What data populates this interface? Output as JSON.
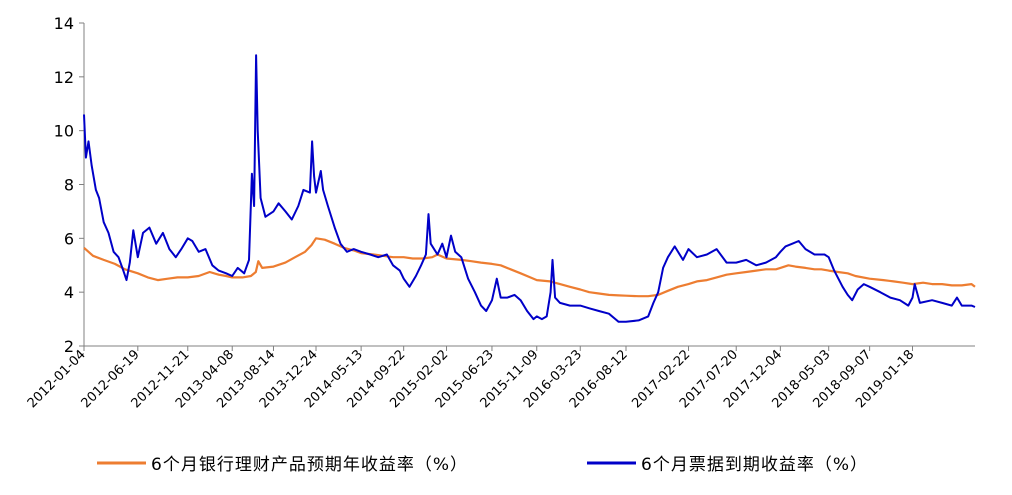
{
  "chart_data": {
    "type": "line",
    "title": "",
    "xlabel": "",
    "ylabel": "",
    "ylim": [
      2,
      14
    ],
    "yticks": [
      2,
      4,
      6,
      8,
      10,
      12,
      14
    ],
    "xlim": [
      "2012-01-04",
      "2019-07-31"
    ],
    "xtick_labels": [
      "2012-01-04",
      "2012-06-19",
      "2012-11-21",
      "2013-04-08",
      "2013-08-14",
      "2013-12-24",
      "2014-05-13",
      "2014-09-22",
      "2015-02-02",
      "2015-06-23",
      "2015-11-09",
      "2016-03-23",
      "2016-08-12",
      "2017-02-22",
      "2017-07-20",
      "2017-12-04",
      "2018-05-03",
      "2018-09-07",
      "2019-01-18"
    ],
    "grid": false,
    "legend_position": "bottom",
    "series": [
      {
        "name": "6个月银行理财产品预期年收益率（%）",
        "color": "#ED7D31",
        "points": [
          [
            "2012-01-04",
            5.65
          ],
          [
            "2012-02-01",
            5.35
          ],
          [
            "2012-03-05",
            5.2
          ],
          [
            "2012-04-09",
            5.05
          ],
          [
            "2012-05-10",
            4.85
          ],
          [
            "2012-06-19",
            4.7
          ],
          [
            "2012-07-20",
            4.55
          ],
          [
            "2012-08-20",
            4.45
          ],
          [
            "2012-09-20",
            4.5
          ],
          [
            "2012-10-20",
            4.55
          ],
          [
            "2012-11-21",
            4.55
          ],
          [
            "2012-12-25",
            4.6
          ],
          [
            "2013-01-28",
            4.75
          ],
          [
            "2013-02-25",
            4.65
          ],
          [
            "2013-03-20",
            4.6
          ],
          [
            "2013-04-08",
            4.55
          ],
          [
            "2013-05-10",
            4.55
          ],
          [
            "2013-06-05",
            4.6
          ],
          [
            "2013-06-20",
            4.75
          ],
          [
            "2013-06-28",
            5.15
          ],
          [
            "2013-07-10",
            4.9
          ],
          [
            "2013-08-14",
            4.95
          ],
          [
            "2013-09-20",
            5.1
          ],
          [
            "2013-10-20",
            5.3
          ],
          [
            "2013-11-20",
            5.5
          ],
          [
            "2013-12-10",
            5.75
          ],
          [
            "2013-12-24",
            6.0
          ],
          [
            "2014-01-20",
            5.95
          ],
          [
            "2014-02-20",
            5.8
          ],
          [
            "2014-03-20",
            5.65
          ],
          [
            "2014-04-20",
            5.55
          ],
          [
            "2014-05-13",
            5.45
          ],
          [
            "2014-06-20",
            5.4
          ],
          [
            "2014-07-20",
            5.35
          ],
          [
            "2014-08-20",
            5.3
          ],
          [
            "2014-09-22",
            5.3
          ],
          [
            "2014-10-20",
            5.25
          ],
          [
            "2014-11-20",
            5.25
          ],
          [
            "2014-12-20",
            5.3
          ],
          [
            "2015-01-05",
            5.4
          ],
          [
            "2015-02-02",
            5.25
          ],
          [
            "2015-03-20",
            5.2
          ],
          [
            "2015-04-20",
            5.15
          ],
          [
            "2015-05-20",
            5.1
          ],
          [
            "2015-06-23",
            5.05
          ],
          [
            "2015-07-20",
            5.0
          ],
          [
            "2015-08-20",
            4.85
          ],
          [
            "2015-09-20",
            4.7
          ],
          [
            "2015-10-20",
            4.55
          ],
          [
            "2015-11-09",
            4.45
          ],
          [
            "2015-12-20",
            4.4
          ],
          [
            "2016-01-20",
            4.3
          ],
          [
            "2016-02-20",
            4.2
          ],
          [
            "2016-03-23",
            4.1
          ],
          [
            "2016-04-20",
            4.0
          ],
          [
            "2016-05-20",
            3.95
          ],
          [
            "2016-06-20",
            3.9
          ],
          [
            "2016-07-20",
            3.88
          ],
          [
            "2016-08-12",
            3.87
          ],
          [
            "2016-09-20",
            3.85
          ],
          [
            "2016-10-20",
            3.85
          ],
          [
            "2016-11-20",
            3.9
          ],
          [
            "2016-12-20",
            4.05
          ],
          [
            "2017-01-20",
            4.2
          ],
          [
            "2017-02-22",
            4.3
          ],
          [
            "2017-03-20",
            4.4
          ],
          [
            "2017-04-20",
            4.45
          ],
          [
            "2017-05-20",
            4.55
          ],
          [
            "2017-06-20",
            4.65
          ],
          [
            "2017-07-20",
            4.7
          ],
          [
            "2017-08-20",
            4.75
          ],
          [
            "2017-09-20",
            4.8
          ],
          [
            "2017-10-20",
            4.85
          ],
          [
            "2017-11-20",
            4.85
          ],
          [
            "2017-12-04",
            4.9
          ],
          [
            "2017-12-29",
            5.0
          ],
          [
            "2018-01-20",
            4.95
          ],
          [
            "2018-02-20",
            4.9
          ],
          [
            "2018-03-20",
            4.85
          ],
          [
            "2018-04-10",
            4.85
          ],
          [
            "2018-05-03",
            4.8
          ],
          [
            "2018-06-01",
            4.75
          ],
          [
            "2018-07-01",
            4.7
          ],
          [
            "2018-07-25",
            4.6
          ],
          [
            "2018-09-07",
            4.5
          ],
          [
            "2018-10-20",
            4.45
          ],
          [
            "2018-11-20",
            4.4
          ],
          [
            "2018-12-20",
            4.35
          ],
          [
            "2019-01-18",
            4.3
          ],
          [
            "2019-02-20",
            4.35
          ],
          [
            "2019-03-20",
            4.3
          ],
          [
            "2019-04-20",
            4.3
          ],
          [
            "2019-05-20",
            4.25
          ],
          [
            "2019-06-20",
            4.25
          ],
          [
            "2019-07-20",
            4.3
          ],
          [
            "2019-07-31",
            4.2
          ]
        ]
      },
      {
        "name": "6个月票据到期收益率（%）",
        "color": "#0000C8",
        "points": [
          [
            "2012-01-04",
            10.6
          ],
          [
            "2012-01-10",
            9.0
          ],
          [
            "2012-01-18",
            9.6
          ],
          [
            "2012-01-28",
            8.7
          ],
          [
            "2012-02-10",
            7.8
          ],
          [
            "2012-02-20",
            7.5
          ],
          [
            "2012-03-05",
            6.6
          ],
          [
            "2012-03-20",
            6.2
          ],
          [
            "2012-04-05",
            5.5
          ],
          [
            "2012-04-20",
            5.3
          ],
          [
            "2012-05-05",
            4.8
          ],
          [
            "2012-05-15",
            4.45
          ],
          [
            "2012-05-25",
            5.1
          ],
          [
            "2012-06-05",
            6.3
          ],
          [
            "2012-06-19",
            5.3
          ],
          [
            "2012-07-05",
            6.2
          ],
          [
            "2012-07-25",
            6.4
          ],
          [
            "2012-08-15",
            5.8
          ],
          [
            "2012-09-05",
            6.2
          ],
          [
            "2012-09-25",
            5.6
          ],
          [
            "2012-10-15",
            5.3
          ],
          [
            "2012-11-01",
            5.6
          ],
          [
            "2012-11-21",
            6.0
          ],
          [
            "2012-12-05",
            5.9
          ],
          [
            "2012-12-25",
            5.5
          ],
          [
            "2013-01-15",
            5.6
          ],
          [
            "2013-02-05",
            5.0
          ],
          [
            "2013-02-25",
            4.8
          ],
          [
            "2013-03-20",
            4.7
          ],
          [
            "2013-04-08",
            4.6
          ],
          [
            "2013-04-25",
            4.9
          ],
          [
            "2013-05-15",
            4.7
          ],
          [
            "2013-05-30",
            5.2
          ],
          [
            "2013-06-08",
            8.4
          ],
          [
            "2013-06-15",
            7.2
          ],
          [
            "2013-06-21",
            12.8
          ],
          [
            "2013-06-26",
            10.0
          ],
          [
            "2013-07-05",
            7.5
          ],
          [
            "2013-07-20",
            6.8
          ],
          [
            "2013-08-14",
            7.0
          ],
          [
            "2013-08-30",
            7.3
          ],
          [
            "2013-09-20",
            7.0
          ],
          [
            "2013-10-10",
            6.7
          ],
          [
            "2013-10-30",
            7.2
          ],
          [
            "2013-11-15",
            7.8
          ],
          [
            "2013-12-05",
            7.7
          ],
          [
            "2013-12-12",
            9.6
          ],
          [
            "2013-12-18",
            8.3
          ],
          [
            "2013-12-24",
            7.7
          ],
          [
            "2014-01-08",
            8.5
          ],
          [
            "2014-01-15",
            7.8
          ],
          [
            "2014-01-30",
            7.2
          ],
          [
            "2014-02-20",
            6.4
          ],
          [
            "2014-03-10",
            5.8
          ],
          [
            "2014-03-30",
            5.5
          ],
          [
            "2014-04-20",
            5.6
          ],
          [
            "2014-05-13",
            5.5
          ],
          [
            "2014-06-10",
            5.4
          ],
          [
            "2014-07-05",
            5.3
          ],
          [
            "2014-08-01",
            5.4
          ],
          [
            "2014-08-20",
            5.0
          ],
          [
            "2014-09-10",
            4.8
          ],
          [
            "2014-09-22",
            4.5
          ],
          [
            "2014-10-10",
            4.2
          ],
          [
            "2014-10-30",
            4.6
          ],
          [
            "2014-11-15",
            5.0
          ],
          [
            "2014-11-30",
            5.4
          ],
          [
            "2014-12-08",
            6.9
          ],
          [
            "2014-12-15",
            5.8
          ],
          [
            "2015-01-05",
            5.4
          ],
          [
            "2015-01-20",
            5.8
          ],
          [
            "2015-02-02",
            5.3
          ],
          [
            "2015-02-16",
            6.1
          ],
          [
            "2015-03-01",
            5.5
          ],
          [
            "2015-03-20",
            5.3
          ],
          [
            "2015-04-10",
            4.5
          ],
          [
            "2015-05-01",
            4.0
          ],
          [
            "2015-05-20",
            3.5
          ],
          [
            "2015-06-05",
            3.3
          ],
          [
            "2015-06-23",
            3.7
          ],
          [
            "2015-07-08",
            4.5
          ],
          [
            "2015-07-20",
            3.8
          ],
          [
            "2015-08-10",
            3.8
          ],
          [
            "2015-09-01",
            3.9
          ],
          [
            "2015-09-20",
            3.7
          ],
          [
            "2015-10-10",
            3.3
          ],
          [
            "2015-10-30",
            3.0
          ],
          [
            "2015-11-09",
            3.1
          ],
          [
            "2015-11-25",
            3.0
          ],
          [
            "2015-12-10",
            3.1
          ],
          [
            "2015-12-22",
            4.0
          ],
          [
            "2015-12-28",
            5.2
          ],
          [
            "2016-01-05",
            3.8
          ],
          [
            "2016-01-20",
            3.6
          ],
          [
            "2016-02-20",
            3.5
          ],
          [
            "2016-03-23",
            3.5
          ],
          [
            "2016-04-20",
            3.4
          ],
          [
            "2016-05-20",
            3.3
          ],
          [
            "2016-06-20",
            3.2
          ],
          [
            "2016-07-10",
            3.0
          ],
          [
            "2016-07-20",
            2.9
          ],
          [
            "2016-08-12",
            2.9
          ],
          [
            "2016-09-20",
            2.95
          ],
          [
            "2016-10-20",
            3.1
          ],
          [
            "2016-11-05",
            3.6
          ],
          [
            "2016-11-20",
            4.0
          ],
          [
            "2016-12-05",
            4.9
          ],
          [
            "2016-12-20",
            5.3
          ],
          [
            "2017-01-10",
            5.7
          ],
          [
            "2017-02-05",
            5.2
          ],
          [
            "2017-02-22",
            5.6
          ],
          [
            "2017-03-20",
            5.3
          ],
          [
            "2017-04-20",
            5.4
          ],
          [
            "2017-05-20",
            5.6
          ],
          [
            "2017-06-20",
            5.1
          ],
          [
            "2017-07-20",
            5.1
          ],
          [
            "2017-08-20",
            5.2
          ],
          [
            "2017-09-20",
            5.0
          ],
          [
            "2017-10-20",
            5.1
          ],
          [
            "2017-11-20",
            5.3
          ],
          [
            "2017-12-04",
            5.5
          ],
          [
            "2017-12-20",
            5.7
          ],
          [
            "2018-01-10",
            5.8
          ],
          [
            "2018-01-30",
            5.9
          ],
          [
            "2018-02-20",
            5.6
          ],
          [
            "2018-03-20",
            5.4
          ],
          [
            "2018-04-20",
            5.4
          ],
          [
            "2018-05-03",
            5.3
          ],
          [
            "2018-05-20",
            4.8
          ],
          [
            "2018-06-15",
            4.2
          ],
          [
            "2018-07-01",
            3.9
          ],
          [
            "2018-07-15",
            3.7
          ],
          [
            "2018-08-01",
            4.1
          ],
          [
            "2018-08-20",
            4.3
          ],
          [
            "2018-09-07",
            4.2
          ],
          [
            "2018-10-10",
            4.0
          ],
          [
            "2018-11-10",
            3.8
          ],
          [
            "2018-12-10",
            3.7
          ],
          [
            "2019-01-05",
            3.5
          ],
          [
            "2019-01-18",
            3.8
          ],
          [
            "2019-01-25",
            4.3
          ],
          [
            "2019-02-10",
            3.6
          ],
          [
            "2019-03-20",
            3.7
          ],
          [
            "2019-04-20",
            3.6
          ],
          [
            "2019-05-20",
            3.5
          ],
          [
            "2019-06-05",
            3.8
          ],
          [
            "2019-06-20",
            3.5
          ],
          [
            "2019-07-20",
            3.5
          ],
          [
            "2019-07-31",
            3.45
          ]
        ]
      }
    ]
  }
}
